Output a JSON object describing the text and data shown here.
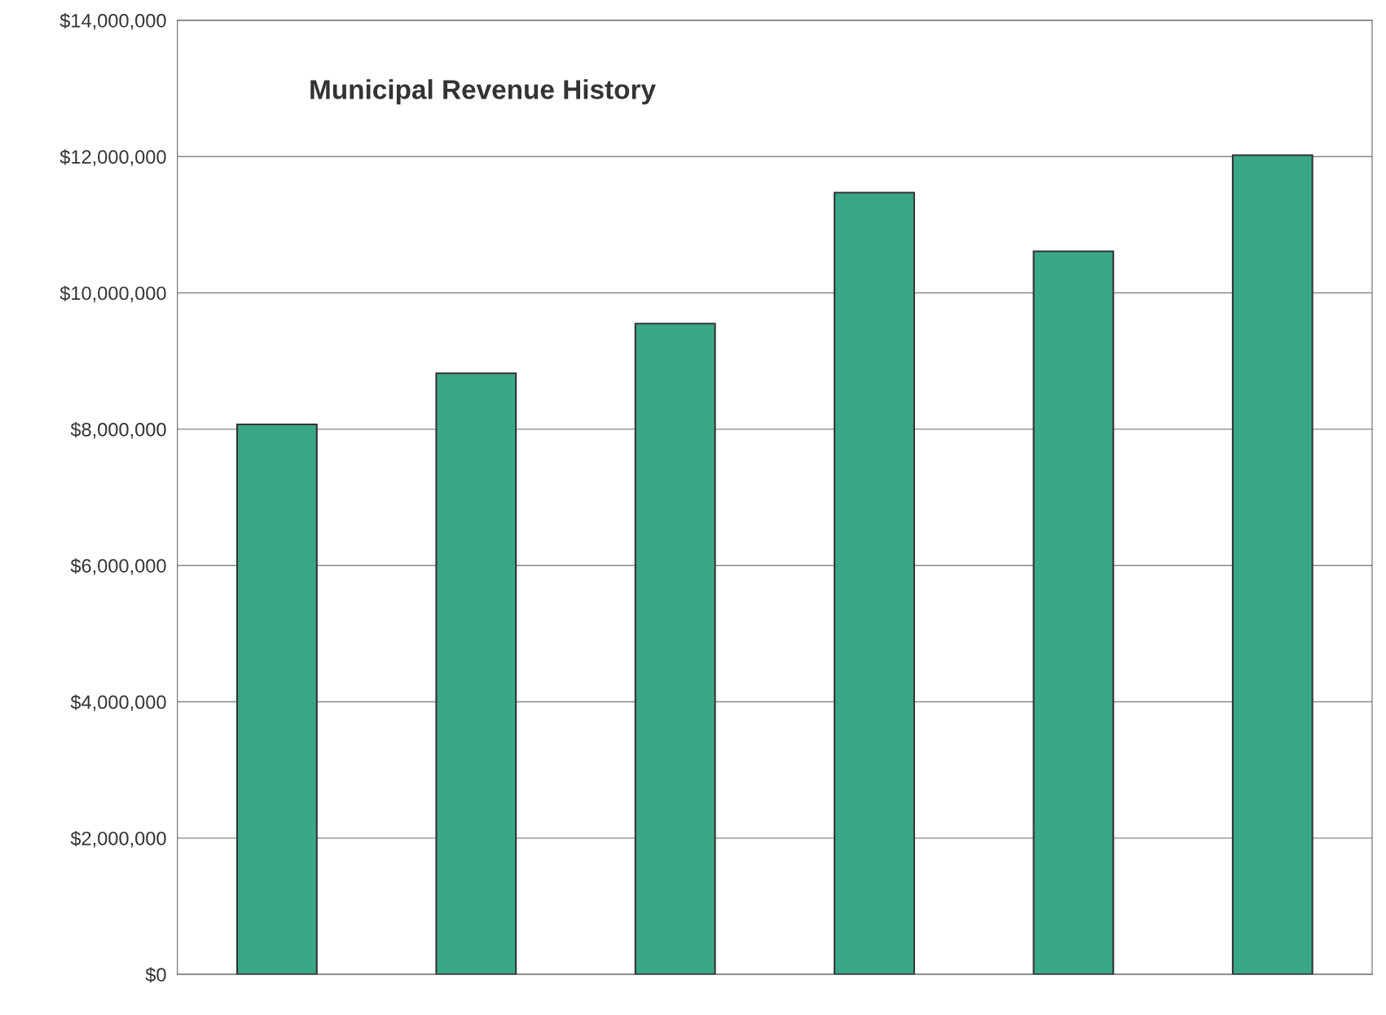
{
  "chart_data": {
    "type": "bar",
    "title": "Municipal Revenue History",
    "categories": [
      null,
      null,
      null,
      null,
      null,
      null
    ],
    "values": [
      8070000,
      8820000,
      9550000,
      11470000,
      10610000,
      12020000
    ],
    "color": "#3aa888",
    "ylim": [
      0,
      14000000
    ],
    "yticks": [
      {
        "value": 0,
        "label": "$0"
      },
      {
        "value": 2000000,
        "label": "$2,000,000"
      },
      {
        "value": 4000000,
        "label": "$4,000,000"
      },
      {
        "value": 6000000,
        "label": "$6,000,000"
      },
      {
        "value": 8000000,
        "label": "$8,000,000"
      },
      {
        "value": 10000000,
        "label": "$10,000,000"
      },
      {
        "value": 12000000,
        "label": "$12,000,000"
      },
      {
        "value": 14000000,
        "label": "$14,000,000"
      }
    ],
    "grid": "y"
  }
}
